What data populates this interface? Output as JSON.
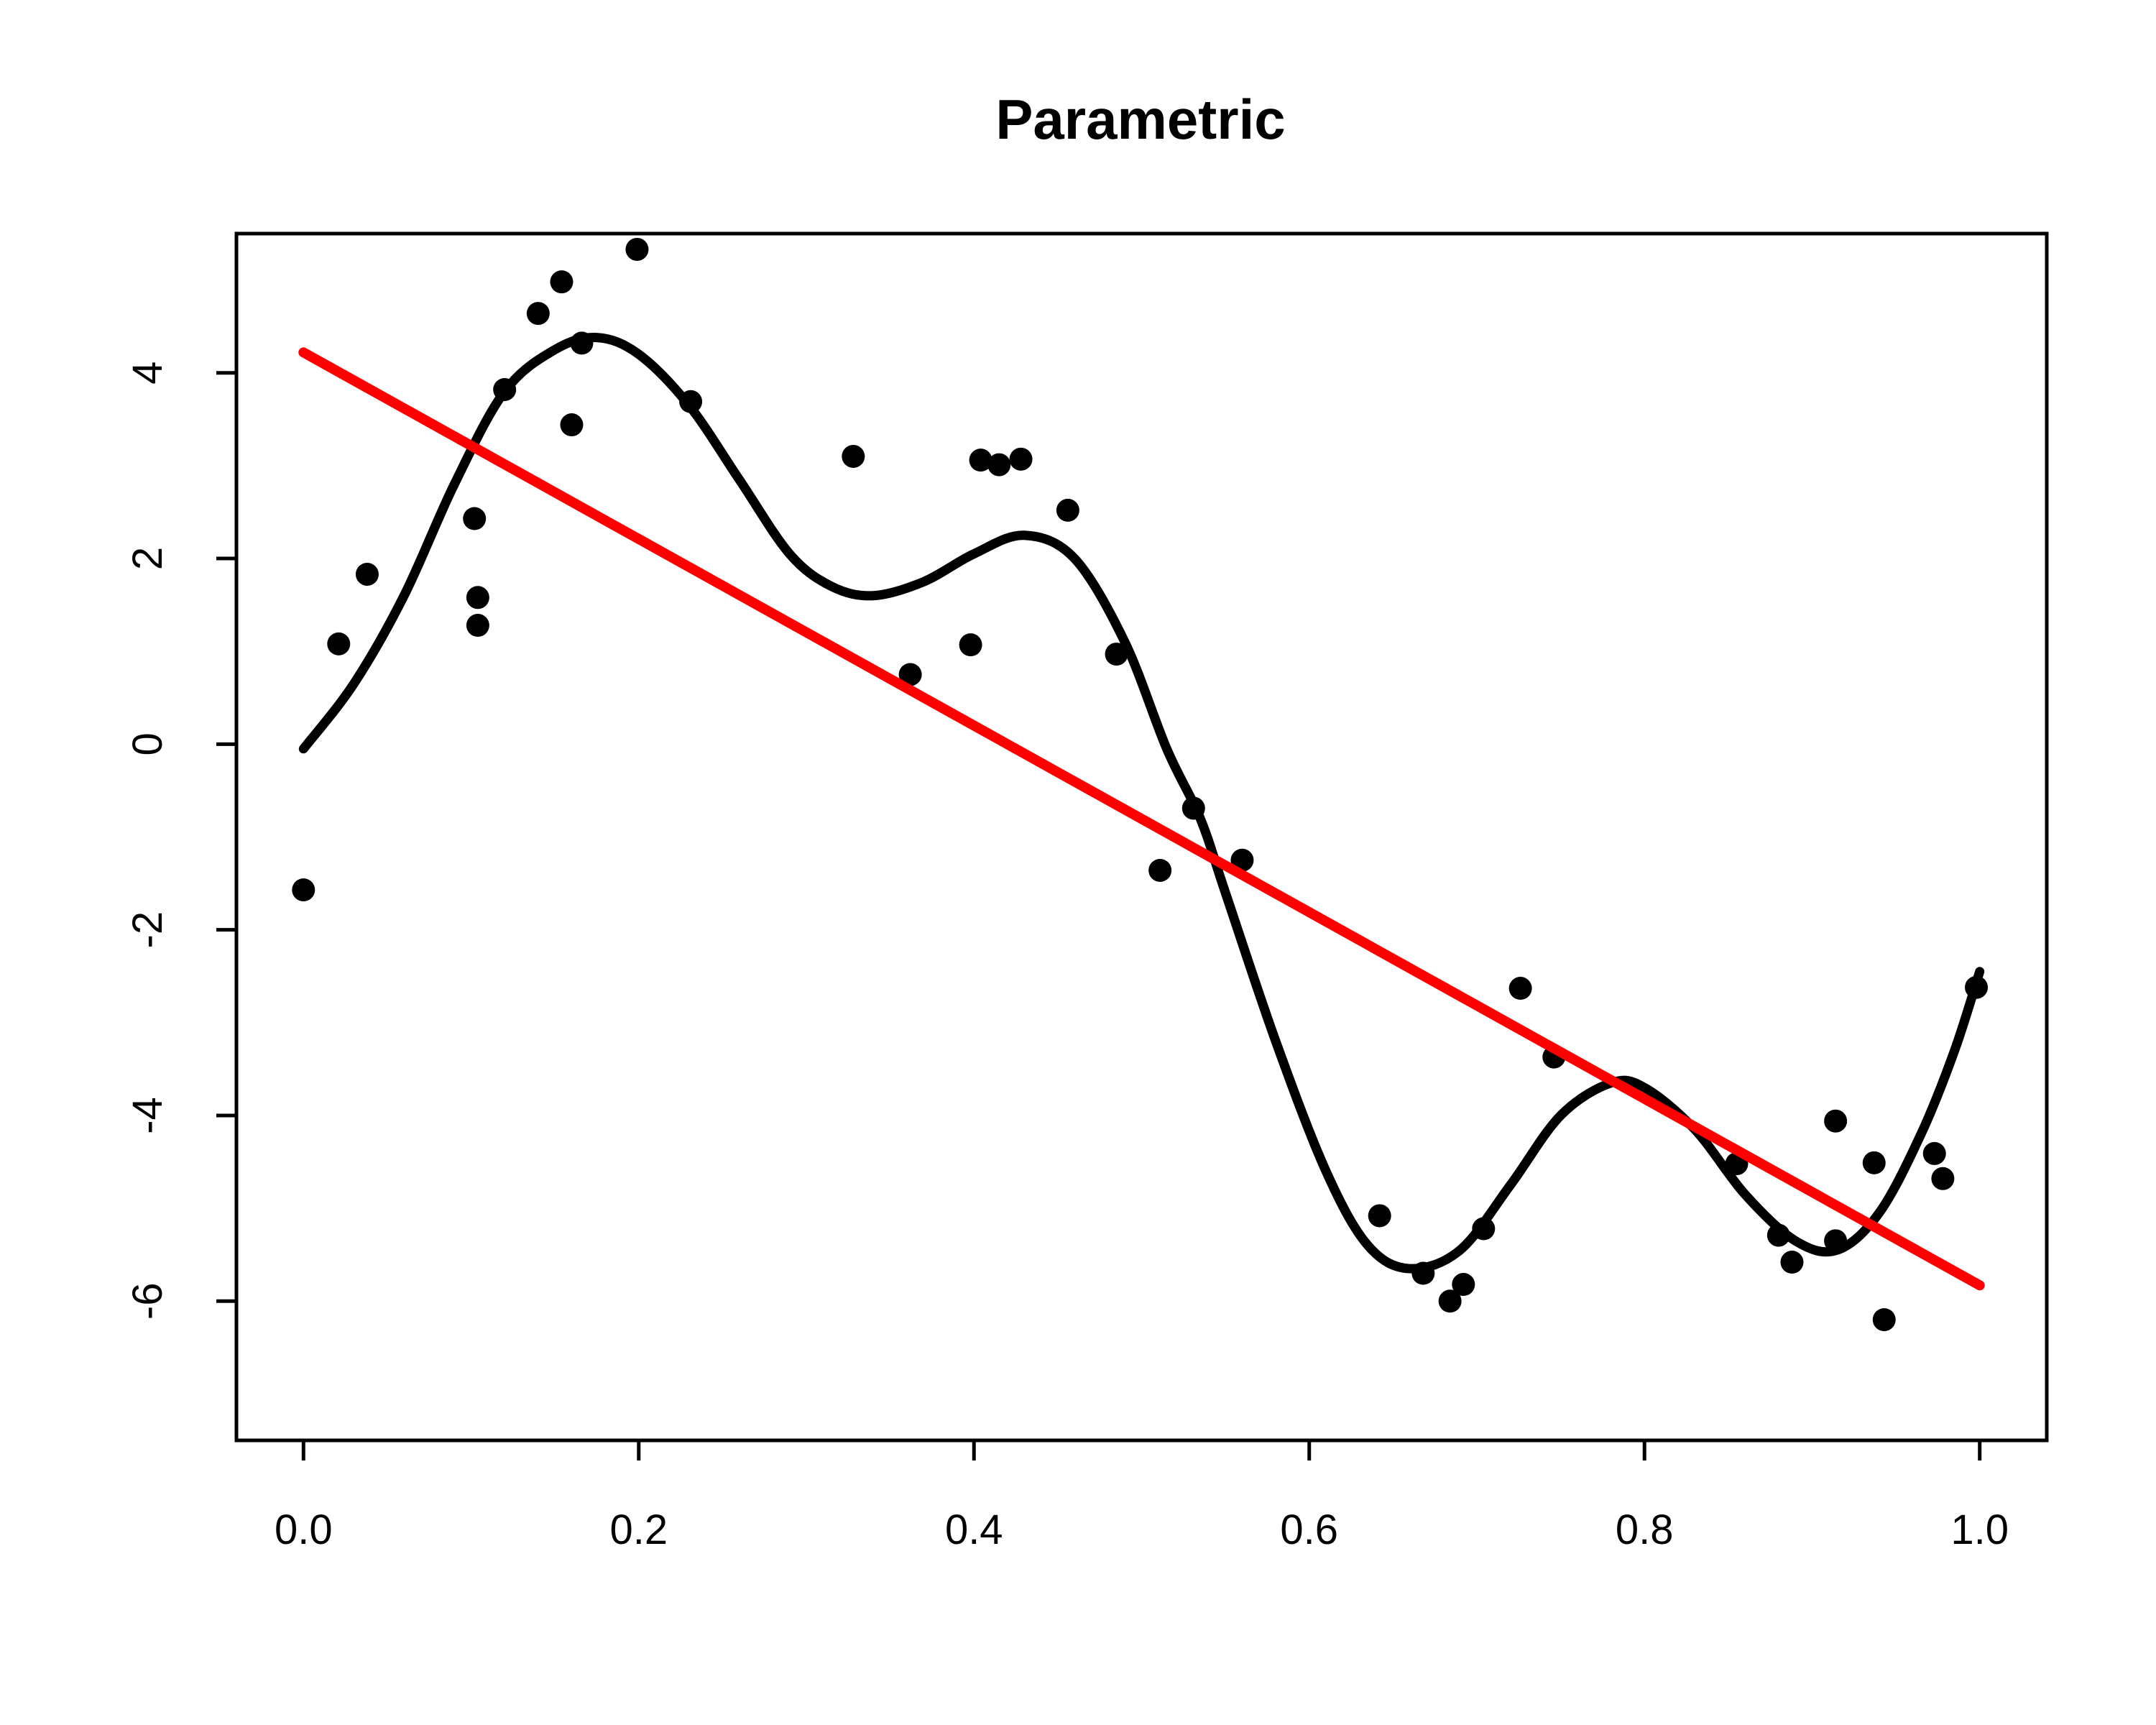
{
  "chart_data": {
    "type": "scatter",
    "title": "Parametric",
    "xlabel": "",
    "ylabel": "",
    "xlim": [
      -0.04,
      1.04
    ],
    "ylim": [
      -7.5,
      5.5
    ],
    "x_ticks": [
      0.0,
      0.2,
      0.4,
      0.6,
      0.8,
      1.0
    ],
    "x_tick_labels": [
      "0.0",
      "0.2",
      "0.4",
      "0.6",
      "0.8",
      "1.0"
    ],
    "y_ticks": [
      4,
      2,
      0,
      -2,
      -4,
      -6
    ],
    "y_tick_labels": [
      "4",
      "2",
      "0",
      "-2",
      "-4",
      "-6"
    ],
    "grid": false,
    "legend": "none",
    "colors": {
      "points": "#000000",
      "smooth_fit": "#000000",
      "linear_fit": "#ff0000",
      "axes": "#000000"
    },
    "series": [
      {
        "kind": "points",
        "x": [
          0.0,
          0.021,
          0.038,
          0.102,
          0.104,
          0.104,
          0.12,
          0.14,
          0.154,
          0.16,
          0.166,
          0.199,
          0.231,
          0.328,
          0.362,
          0.398,
          0.404,
          0.415,
          0.428,
          0.456,
          0.485,
          0.511,
          0.531,
          0.56,
          0.642,
          0.668,
          0.684,
          0.692,
          0.704,
          0.726,
          0.746,
          0.855,
          0.88,
          0.888,
          0.914,
          0.914,
          0.937,
          0.943,
          0.973,
          0.978,
          0.998
        ],
        "y": [
          -1.57,
          1.08,
          1.83,
          2.43,
          1.58,
          1.28,
          3.82,
          4.64,
          4.98,
          3.44,
          4.32,
          5.33,
          3.69,
          3.1,
          0.75,
          1.07,
          3.06,
          3.01,
          3.07,
          2.52,
          0.97,
          -1.36,
          -0.69,
          -1.25,
          -5.08,
          -5.7,
          -6.0,
          -5.82,
          -5.22,
          -2.63,
          -3.37,
          -4.52,
          -5.29,
          -5.58,
          -4.06,
          -5.35,
          -4.51,
          -6.2,
          -4.41,
          -4.68,
          -2.62
        ]
      },
      {
        "kind": "smooth_fit",
        "x": [
          0.0,
          0.03,
          0.06,
          0.09,
          0.12,
          0.15,
          0.175,
          0.2,
          0.23,
          0.26,
          0.29,
          0.315,
          0.34,
          0.37,
          0.4,
          0.43,
          0.46,
          0.49,
          0.515,
          0.535,
          0.55,
          0.58,
          0.61,
          0.635,
          0.66,
          0.69,
          0.72,
          0.75,
          0.78,
          0.8,
          0.83,
          0.86,
          0.89,
          0.915,
          0.94,
          0.965,
          0.985,
          1.0
        ],
        "y": [
          -0.05,
          0.65,
          1.6,
          2.8,
          3.8,
          4.25,
          4.38,
          4.2,
          3.65,
          2.85,
          2.05,
          1.7,
          1.6,
          1.75,
          2.05,
          2.25,
          2.0,
          1.1,
          -0.05,
          -0.8,
          -1.6,
          -3.2,
          -4.6,
          -5.4,
          -5.65,
          -5.45,
          -4.75,
          -4.0,
          -3.65,
          -3.7,
          -4.15,
          -4.85,
          -5.35,
          -5.45,
          -5.05,
          -4.2,
          -3.3,
          -2.45
        ]
      },
      {
        "kind": "linear_fit",
        "x": [
          0.0,
          1.0
        ],
        "y": [
          4.22,
          -5.83
        ]
      }
    ]
  }
}
